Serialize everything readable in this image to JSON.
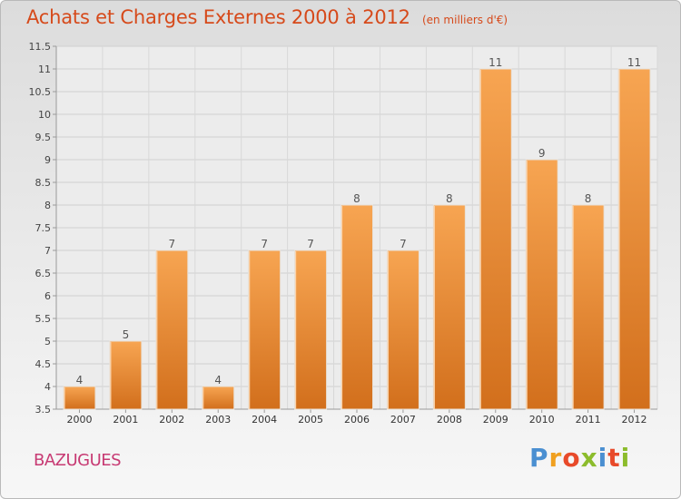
{
  "header": {
    "title": "Achats et Charges Externes 2000 à 2012",
    "unit": "(en milliers d'€)"
  },
  "footer": {
    "commune": "BAZUGUES",
    "brand_letters": [
      "P",
      "r",
      "o",
      "x",
      "i",
      "t",
      "i"
    ],
    "brand_colors": [
      "#4a8fd1",
      "#f0a020",
      "#e84a2a",
      "#8cbc2c",
      "#4a8fd1",
      "#e84a2a",
      "#8cbc2c"
    ]
  },
  "chart_data": {
    "type": "bar",
    "title": "Achats et Charges Externes 2000 à 2012",
    "categories": [
      "2000",
      "2001",
      "2002",
      "2003",
      "2004",
      "2005",
      "2006",
      "2007",
      "2008",
      "2009",
      "2010",
      "2011",
      "2012"
    ],
    "values": [
      4,
      5,
      7,
      4,
      7,
      7,
      8,
      7,
      8,
      11,
      9,
      8,
      11
    ],
    "data_labels": [
      "4",
      "5",
      "7",
      "4",
      "7",
      "7",
      "8",
      "7",
      "8",
      "11",
      "9",
      "8",
      "11"
    ],
    "ylim": [
      3.5,
      11.5
    ],
    "yticks": [
      3.5,
      4,
      4.5,
      5,
      5.5,
      6,
      6.5,
      7,
      7.5,
      8,
      8.5,
      9,
      9.5,
      10,
      10.5,
      11,
      11.5
    ],
    "ytick_labels": [
      "3.5",
      "4",
      "4.5",
      "5",
      "5.5",
      "6",
      "6.5",
      "7",
      "7.5",
      "8",
      "8.5",
      "9",
      "9.5",
      "10",
      "10.5",
      "11",
      "11.5"
    ],
    "grid": true,
    "bar_color_top": "#f7a552",
    "bar_color_bottom": "#d26f1c"
  }
}
